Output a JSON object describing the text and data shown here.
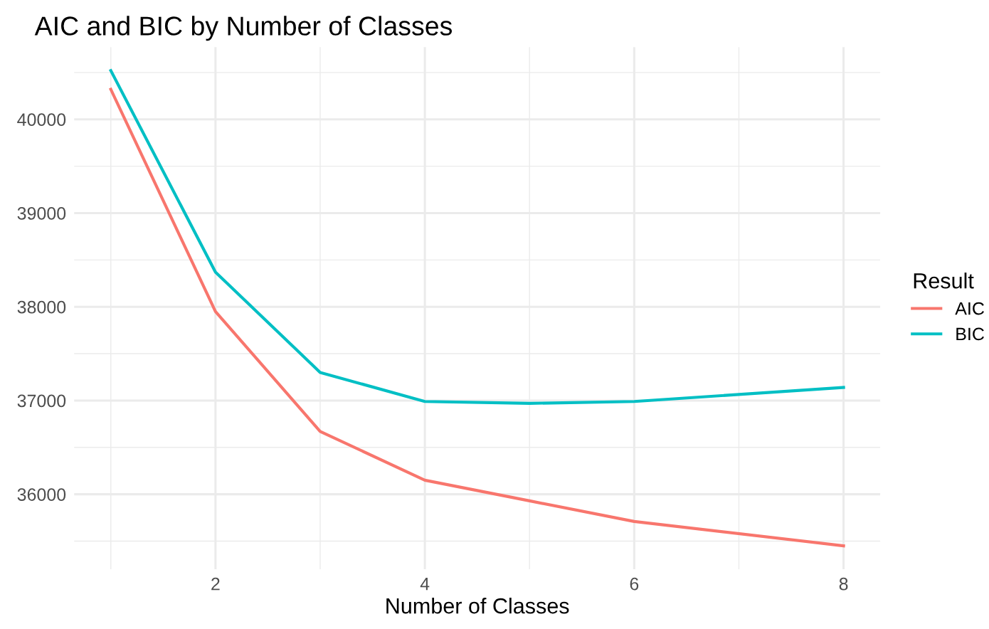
{
  "chart_data": {
    "type": "line",
    "title": "AIC and BIC by Number of Classes",
    "xlabel": "Number of Classes",
    "legend_title": "Result",
    "x": [
      1,
      2,
      3,
      4,
      5,
      6,
      7,
      8
    ],
    "series": [
      {
        "name": "AIC",
        "color": "#f8766d",
        "values": [
          40320,
          37950,
          36670,
          36150,
          35930,
          35710,
          null,
          35450
        ]
      },
      {
        "name": "BIC",
        "color": "#00bfc4",
        "values": [
          40520,
          38370,
          37300,
          36990,
          36970,
          36990,
          null,
          37140
        ]
      }
    ],
    "xlim": [
      0.65,
      8.35
    ],
    "ylim": [
      35200,
      40770
    ],
    "xticks": [
      2,
      4,
      6,
      8
    ],
    "yticks": [
      36000,
      37000,
      38000,
      39000,
      40000
    ],
    "grid": true,
    "legend": "right",
    "marker": "none",
    "line_style": "solid"
  }
}
